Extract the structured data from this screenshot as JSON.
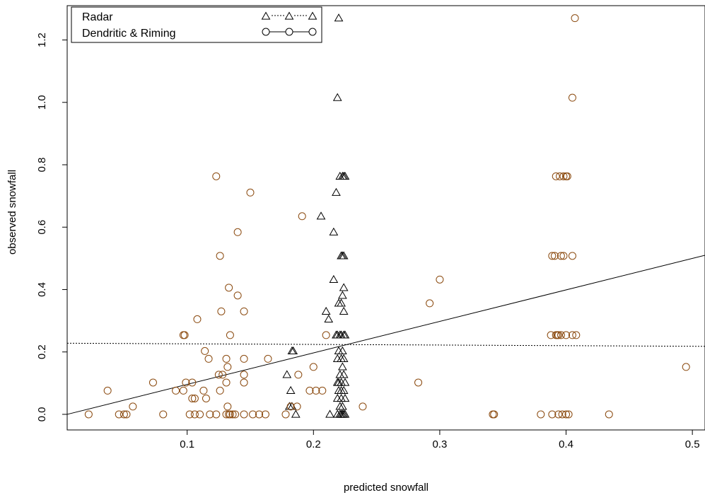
{
  "chart_data": {
    "type": "scatter",
    "xlabel": "predicted snowfall",
    "ylabel": "observed snowfall",
    "xlim": [
      0.005,
      0.51
    ],
    "ylim": [
      -0.05,
      1.31
    ],
    "x_ticks": [
      0.1,
      0.2,
      0.3,
      0.4,
      0.5
    ],
    "x_tick_labels": [
      "0.1",
      "0.2",
      "0.3",
      "0.4",
      "0.5"
    ],
    "y_ticks": [
      0.0,
      0.2,
      0.4,
      0.6,
      0.8,
      1.0,
      1.2
    ],
    "y_tick_labels": [
      "0.0",
      "0.2",
      "0.4",
      "0.6",
      "0.8",
      "1.0",
      "1.2"
    ],
    "grid": false,
    "legend_position": "top-left",
    "legend": [
      {
        "label": "Radar",
        "marker": "triangle",
        "line": "dotted",
        "color": "#000000"
      },
      {
        "label": "Dendritic & Riming",
        "marker": "circle",
        "line": "solid",
        "color": "#000000"
      }
    ],
    "lines": [
      {
        "series": "Radar",
        "style": "dotted",
        "color": "#000000",
        "points": [
          [
            0.005,
            0.228
          ],
          [
            0.51,
            0.218
          ]
        ]
      },
      {
        "series": "Dendritic & Riming",
        "style": "solid",
        "color": "#000000",
        "points": [
          [
            0.005,
            0.0
          ],
          [
            0.51,
            0.51
          ]
        ]
      }
    ],
    "series": [
      {
        "name": "Radar",
        "marker": "triangle",
        "color": "#000000",
        "points": [
          [
            0.22,
            1.27
          ],
          [
            0.219,
            1.015
          ],
          [
            0.221,
            0.763
          ],
          [
            0.223,
            0.763
          ],
          [
            0.224,
            0.763
          ],
          [
            0.225,
            0.763
          ],
          [
            0.218,
            0.711
          ],
          [
            0.206,
            0.635
          ],
          [
            0.216,
            0.584
          ],
          [
            0.222,
            0.508
          ],
          [
            0.223,
            0.508
          ],
          [
            0.224,
            0.508
          ],
          [
            0.216,
            0.432
          ],
          [
            0.224,
            0.406
          ],
          [
            0.223,
            0.381
          ],
          [
            0.22,
            0.356
          ],
          [
            0.222,
            0.356
          ],
          [
            0.21,
            0.33
          ],
          [
            0.224,
            0.33
          ],
          [
            0.212,
            0.305
          ],
          [
            0.218,
            0.254
          ],
          [
            0.219,
            0.254
          ],
          [
            0.221,
            0.254
          ],
          [
            0.222,
            0.254
          ],
          [
            0.224,
            0.254
          ],
          [
            0.225,
            0.254
          ],
          [
            0.183,
            0.203
          ],
          [
            0.184,
            0.203
          ],
          [
            0.22,
            0.203
          ],
          [
            0.223,
            0.203
          ],
          [
            0.222,
            0.178
          ],
          [
            0.224,
            0.178
          ],
          [
            0.219,
            0.178
          ],
          [
            0.179,
            0.127
          ],
          [
            0.221,
            0.127
          ],
          [
            0.224,
            0.127
          ],
          [
            0.223,
            0.152
          ],
          [
            0.219,
            0.102
          ],
          [
            0.22,
            0.102
          ],
          [
            0.222,
            0.102
          ],
          [
            0.225,
            0.102
          ],
          [
            0.182,
            0.076
          ],
          [
            0.22,
            0.076
          ],
          [
            0.222,
            0.076
          ],
          [
            0.224,
            0.076
          ],
          [
            0.219,
            0.051
          ],
          [
            0.222,
            0.051
          ],
          [
            0.225,
            0.051
          ],
          [
            0.181,
            0.025
          ],
          [
            0.183,
            0.025
          ],
          [
            0.221,
            0.025
          ],
          [
            0.223,
            0.025
          ],
          [
            0.186,
            0.0
          ],
          [
            0.213,
            0.0
          ],
          [
            0.219,
            0.0
          ],
          [
            0.221,
            0.0
          ],
          [
            0.222,
            0.0
          ],
          [
            0.223,
            0.0
          ],
          [
            0.224,
            0.0
          ],
          [
            0.225,
            0.0
          ]
        ]
      },
      {
        "name": "Dendritic & Riming",
        "marker": "circle",
        "color": "#8b4a0f",
        "points": [
          [
            0.407,
            1.27
          ],
          [
            0.405,
            1.015
          ],
          [
            0.123,
            0.763
          ],
          [
            0.15,
            0.711
          ],
          [
            0.191,
            0.635
          ],
          [
            0.14,
            0.584
          ],
          [
            0.126,
            0.508
          ],
          [
            0.133,
            0.406
          ],
          [
            0.14,
            0.381
          ],
          [
            0.3,
            0.432
          ],
          [
            0.292,
            0.356
          ],
          [
            0.127,
            0.33
          ],
          [
            0.145,
            0.33
          ],
          [
            0.108,
            0.305
          ],
          [
            0.097,
            0.254
          ],
          [
            0.098,
            0.254
          ],
          [
            0.134,
            0.254
          ],
          [
            0.21,
            0.254
          ],
          [
            0.114,
            0.203
          ],
          [
            0.117,
            0.178
          ],
          [
            0.131,
            0.178
          ],
          [
            0.145,
            0.178
          ],
          [
            0.164,
            0.178
          ],
          [
            0.2,
            0.152
          ],
          [
            0.132,
            0.152
          ],
          [
            0.125,
            0.127
          ],
          [
            0.128,
            0.127
          ],
          [
            0.145,
            0.127
          ],
          [
            0.188,
            0.127
          ],
          [
            0.073,
            0.102
          ],
          [
            0.099,
            0.102
          ],
          [
            0.104,
            0.102
          ],
          [
            0.131,
            0.102
          ],
          [
            0.145,
            0.102
          ],
          [
            0.283,
            0.102
          ],
          [
            0.037,
            0.076
          ],
          [
            0.091,
            0.076
          ],
          [
            0.097,
            0.076
          ],
          [
            0.113,
            0.076
          ],
          [
            0.126,
            0.076
          ],
          [
            0.197,
            0.076
          ],
          [
            0.202,
            0.076
          ],
          [
            0.207,
            0.076
          ],
          [
            0.104,
            0.051
          ],
          [
            0.106,
            0.051
          ],
          [
            0.115,
            0.051
          ],
          [
            0.057,
            0.025
          ],
          [
            0.132,
            0.025
          ],
          [
            0.182,
            0.025
          ],
          [
            0.187,
            0.025
          ],
          [
            0.239,
            0.025
          ],
          [
            0.022,
            0.0
          ],
          [
            0.046,
            0.0
          ],
          [
            0.05,
            0.0
          ],
          [
            0.052,
            0.0
          ],
          [
            0.081,
            0.0
          ],
          [
            0.102,
            0.0
          ],
          [
            0.106,
            0.0
          ],
          [
            0.11,
            0.0
          ],
          [
            0.118,
            0.0
          ],
          [
            0.123,
            0.0
          ],
          [
            0.131,
            0.0
          ],
          [
            0.133,
            0.0
          ],
          [
            0.134,
            0.0
          ],
          [
            0.136,
            0.0
          ],
          [
            0.138,
            0.0
          ],
          [
            0.145,
            0.0
          ],
          [
            0.152,
            0.0
          ],
          [
            0.157,
            0.0
          ],
          [
            0.162,
            0.0
          ],
          [
            0.178,
            0.0
          ],
          [
            0.342,
            0.0
          ],
          [
            0.343,
            0.0
          ],
          [
            0.38,
            0.0
          ],
          [
            0.389,
            0.0
          ],
          [
            0.394,
            0.0
          ],
          [
            0.397,
            0.0
          ],
          [
            0.4,
            0.0
          ],
          [
            0.402,
            0.0
          ],
          [
            0.434,
            0.0
          ],
          [
            0.495,
            0.152
          ],
          [
            0.389,
            0.508
          ],
          [
            0.391,
            0.508
          ],
          [
            0.396,
            0.508
          ],
          [
            0.398,
            0.508
          ],
          [
            0.405,
            0.508
          ],
          [
            0.392,
            0.763
          ],
          [
            0.395,
            0.763
          ],
          [
            0.398,
            0.763
          ],
          [
            0.4,
            0.763
          ],
          [
            0.401,
            0.763
          ],
          [
            0.388,
            0.254
          ],
          [
            0.392,
            0.254
          ],
          [
            0.393,
            0.254
          ],
          [
            0.394,
            0.254
          ],
          [
            0.396,
            0.254
          ],
          [
            0.4,
            0.254
          ],
          [
            0.405,
            0.254
          ],
          [
            0.408,
            0.254
          ]
        ]
      }
    ]
  }
}
